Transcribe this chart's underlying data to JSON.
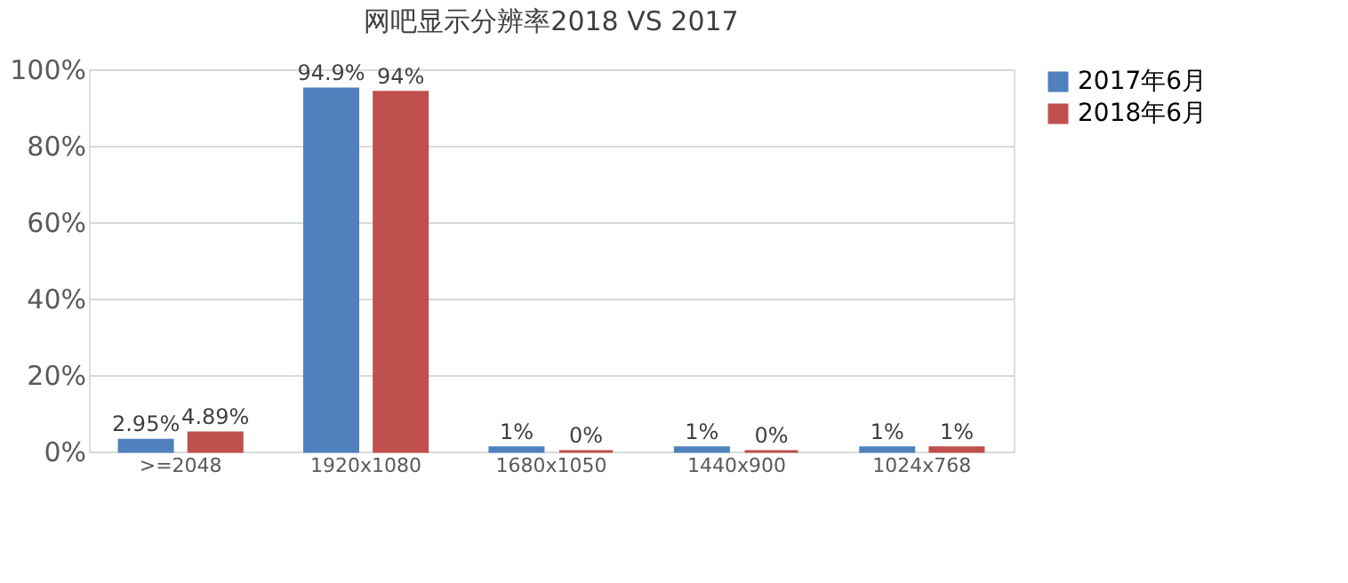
{
  "chart_data": {
    "type": "bar",
    "title": "网吧显示分辨率2018 VS 2017",
    "categories": [
      ">=2048",
      "1920x1080",
      "1680x1050",
      "1440x900",
      "1024x768"
    ],
    "series": [
      {
        "name": "2017年6月",
        "color": "#4f81bd",
        "values": [
          2.95,
          94.9,
          1,
          1,
          1
        ],
        "value_labels": [
          "2.95%",
          "94.9%",
          "1%",
          "1%",
          "1%"
        ]
      },
      {
        "name": "2018年6月",
        "color": "#c0504d",
        "values": [
          4.89,
          94,
          0,
          0,
          1
        ],
        "value_labels": [
          "4.89%",
          "94%",
          "0%",
          "0%",
          "1%"
        ]
      }
    ],
    "ylim": [
      0,
      100
    ],
    "yticks": [
      {
        "value": 0,
        "label": "0%"
      },
      {
        "value": 20,
        "label": "20%"
      },
      {
        "value": 40,
        "label": "40%"
      },
      {
        "value": 60,
        "label": "60%"
      },
      {
        "value": 80,
        "label": "80%"
      },
      {
        "value": 100,
        "label": "100%"
      }
    ],
    "grid": "y",
    "legend": "right"
  }
}
